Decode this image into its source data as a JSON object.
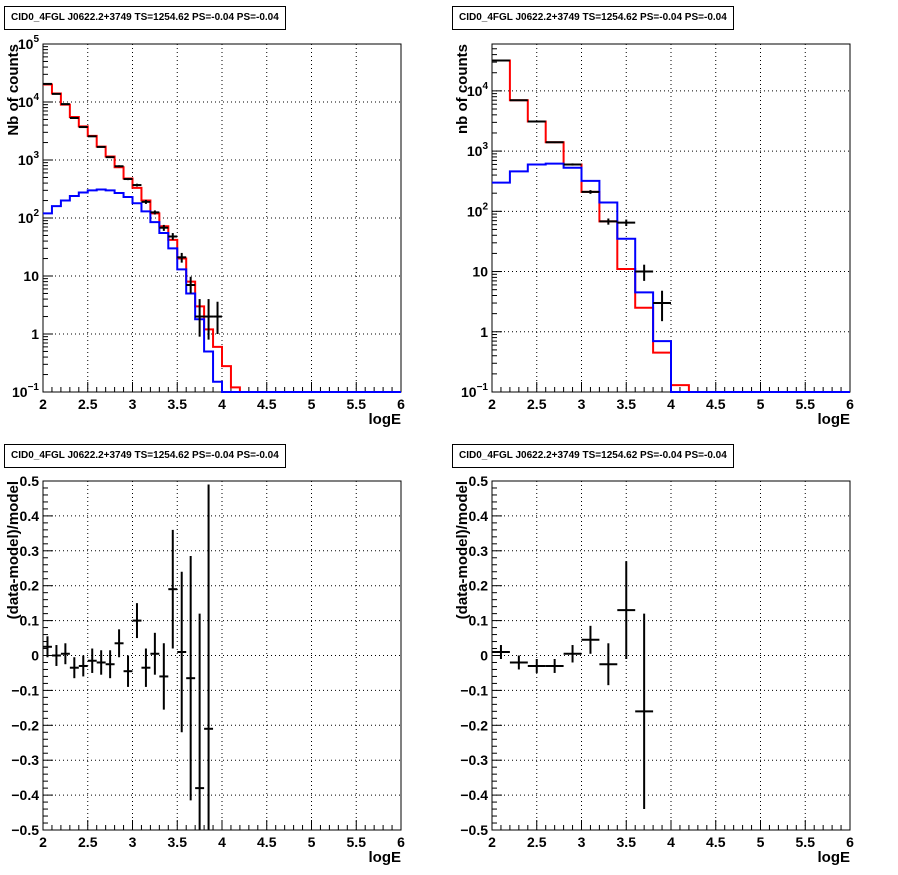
{
  "chart_data": [
    {
      "type": "line",
      "title": "CID0_4FGL J0622.2+3749 TS=1254.62 PS=-0.04 PS=-0.04",
      "xlabel": "logE",
      "ylabel": "Nb of counts",
      "yscale": "log",
      "xlim": [
        2,
        6
      ],
      "ylim": [
        0.1,
        100000
      ],
      "grid": true,
      "x_ticks": [
        "2",
        "2.5",
        "3",
        "3.5",
        "4",
        "4.5",
        "5",
        "5.5",
        "6"
      ],
      "y_ticks": [
        "10^-1",
        "1",
        "10",
        "10^2",
        "10^3",
        "10^4",
        "10^5"
      ],
      "series": [
        {
          "name": "",
          "color": "#ff0000",
          "style": "step",
          "bin_edges": [
            2.0,
            2.1,
            2.2,
            2.3,
            2.4,
            2.5,
            2.6,
            2.7,
            2.8,
            2.9,
            3.0,
            3.1,
            3.2,
            3.3,
            3.4,
            3.5,
            3.6,
            3.7,
            3.8,
            3.9,
            4.0,
            4.1,
            4.2,
            4.3,
            4.4,
            4.5,
            4.6,
            4.7,
            4.8,
            4.9,
            5.0,
            5.1,
            5.2,
            5.3,
            5.4,
            5.5,
            5.6,
            5.7,
            5.8,
            5.9,
            6.0
          ],
          "values": [
            20000,
            14000,
            9000,
            5500,
            3800,
            2600,
            1700,
            1150,
            750,
            480,
            330,
            200,
            120,
            72,
            42,
            20,
            8,
            3,
            1.2,
            0.6,
            0.28,
            0.12,
            0.1,
            0.1,
            0.1,
            0.1,
            0.1,
            0.1,
            0.1,
            0.1,
            0.1,
            0.1,
            0.1,
            0.1,
            0.1,
            0.1,
            0.1,
            0.1,
            0.1,
            0.1
          ]
        },
        {
          "name": "",
          "color": "#0000ff",
          "style": "step",
          "bin_edges": [
            2.0,
            2.1,
            2.2,
            2.3,
            2.4,
            2.5,
            2.6,
            2.7,
            2.8,
            2.9,
            3.0,
            3.1,
            3.2,
            3.3,
            3.4,
            3.5,
            3.6,
            3.7,
            3.8,
            3.9,
            4.0,
            4.1,
            4.2,
            4.3,
            4.4,
            4.5,
            4.6,
            4.7,
            4.8,
            4.9,
            5.0,
            5.1,
            5.2,
            5.3,
            5.4,
            5.5,
            5.6,
            5.7,
            5.8,
            5.9,
            6.0
          ],
          "values": [
            120,
            160,
            200,
            240,
            275,
            300,
            310,
            300,
            270,
            230,
            180,
            130,
            85,
            55,
            30,
            13,
            5,
            1.8,
            0.5,
            0.15,
            0.1,
            0.1,
            0.1,
            0.1,
            0.1,
            0.1,
            0.1,
            0.1,
            0.1,
            0.1,
            0.1,
            0.1,
            0.1,
            0.1,
            0.1,
            0.1,
            0.1,
            0.1,
            0.1,
            0.1
          ]
        },
        {
          "name": "",
          "color": "#000000",
          "style": "errorbar",
          "x": [
            2.05,
            2.15,
            2.25,
            2.35,
            2.45,
            2.55,
            2.65,
            2.75,
            2.85,
            2.95,
            3.05,
            3.15,
            3.25,
            3.35,
            3.45,
            3.55,
            3.65,
            3.75,
            3.85,
            3.95
          ],
          "x_err": 0.05,
          "y": [
            20500,
            13800,
            9200,
            5300,
            3700,
            2560,
            1680,
            1120,
            780,
            470,
            370,
            190,
            125,
            68,
            48,
            21,
            7,
            2,
            2,
            2
          ],
          "y_low": [
            20300,
            13600,
            9000,
            5220,
            3640,
            2510,
            1640,
            1090,
            750,
            450,
            350,
            175,
            115,
            60,
            42,
            17,
            5,
            0.9,
            0.8,
            1.0
          ],
          "y_high": [
            20800,
            14000,
            9400,
            5400,
            3760,
            2610,
            1720,
            1150,
            810,
            490,
            390,
            205,
            135,
            76,
            55,
            25,
            9.7,
            4,
            4,
            3.6
          ]
        }
      ]
    },
    {
      "type": "line",
      "title": "CID0_4FGL J0622.2+3749 TS=1254.62 PS=-0.04 PS=-0.04",
      "xlabel": "logE",
      "ylabel": "nb of counts",
      "yscale": "log",
      "xlim": [
        2,
        6
      ],
      "ylim": [
        0.1,
        60000
      ],
      "grid": true,
      "x_ticks": [
        "2",
        "2.5",
        "3",
        "3.5",
        "4",
        "4.5",
        "5",
        "5.5",
        "6"
      ],
      "y_ticks": [
        "10^-1",
        "1",
        "10",
        "10^2",
        "10^3",
        "10^4"
      ],
      "series": [
        {
          "name": "",
          "color": "#ff0000",
          "style": "step",
          "bin_edges": [
            2.0,
            2.2,
            2.4,
            2.6,
            2.8,
            3.0,
            3.2,
            3.4,
            3.6,
            3.8,
            4.0,
            4.2,
            4.4,
            4.6,
            4.8,
            5.0,
            5.2,
            5.4,
            5.6,
            5.8,
            6.0
          ],
          "values": [
            32000,
            7000,
            3100,
            1400,
            600,
            210,
            68,
            11,
            2.5,
            0.45,
            0.13,
            0.1,
            0.1,
            0.1,
            0.1,
            0.1,
            0.1,
            0.1,
            0.1,
            0.1
          ]
        },
        {
          "name": "",
          "color": "#0000ff",
          "style": "step",
          "bin_edges": [
            2.0,
            2.2,
            2.4,
            2.6,
            2.8,
            3.0,
            3.2,
            3.4,
            3.6,
            3.8,
            4.0,
            4.2,
            4.4,
            4.6,
            4.8,
            5.0,
            5.2,
            5.4,
            5.6,
            5.8,
            6.0
          ],
          "values": [
            300,
            460,
            600,
            620,
            530,
            320,
            140,
            35,
            4.5,
            0.7,
            0.1,
            0.1,
            0.1,
            0.1,
            0.1,
            0.1,
            0.1,
            0.1,
            0.1,
            0.1
          ]
        },
        {
          "name": "",
          "color": "#000000",
          "style": "errorbar",
          "x": [
            2.1,
            2.3,
            2.5,
            2.7,
            2.9,
            3.1,
            3.3,
            3.5,
            3.7,
            3.9
          ],
          "x_err": 0.1,
          "y": [
            32000,
            7000,
            3100,
            1400,
            600,
            210,
            68,
            65,
            10,
            3
          ],
          "y_low": [
            31700,
            6900,
            3040,
            1360,
            575,
            195,
            60,
            57,
            7,
            1.5
          ],
          "y_high": [
            32400,
            7150,
            3160,
            1440,
            625,
            225,
            76,
            73,
            13,
            4.8
          ]
        }
      ]
    },
    {
      "type": "scatter",
      "title": "CID0_4FGL J0622.2+3749 TS=1254.62 PS=-0.04 PS=-0.04",
      "xlabel": "logE",
      "ylabel": "(data-model)/model",
      "xlim": [
        2,
        6
      ],
      "ylim": [
        -0.5,
        0.5
      ],
      "grid": true,
      "x_ticks": [
        "2",
        "2.5",
        "3",
        "3.5",
        "4",
        "4.5",
        "5",
        "5.5",
        "6"
      ],
      "y_ticks": [
        "-0.5",
        "-0.4",
        "-0.3",
        "-0.2",
        "-0.1",
        "0",
        "0.1",
        "0.2",
        "0.3",
        "0.4",
        "0.5"
      ],
      "series": [
        {
          "name": "",
          "color": "#000000",
          "style": "errorbar",
          "x": [
            2.05,
            2.15,
            2.25,
            2.35,
            2.45,
            2.55,
            2.65,
            2.75,
            2.85,
            2.95,
            3.05,
            3.15,
            3.25,
            3.35,
            3.45,
            3.55,
            3.65,
            3.75,
            3.85
          ],
          "x_err": 0.05,
          "y": [
            0.025,
            0.0,
            0.005,
            -0.035,
            -0.03,
            -0.015,
            -0.02,
            -0.025,
            0.035,
            -0.045,
            0.1,
            -0.035,
            0.005,
            -0.06,
            0.19,
            0.01,
            -0.065,
            -0.38,
            -0.21
          ],
          "y_err": [
            0.03,
            0.03,
            0.03,
            0.03,
            0.03,
            0.035,
            0.035,
            0.04,
            0.04,
            0.045,
            0.05,
            0.055,
            0.06,
            0.095,
            0.17,
            0.23,
            0.35,
            0.5,
            0.7
          ]
        }
      ]
    },
    {
      "type": "scatter",
      "title": "CID0_4FGL J0622.2+3749 TS=1254.62 PS=-0.04 PS=-0.04",
      "xlabel": "logE",
      "ylabel": "(data-model)/model",
      "xlim": [
        2,
        6
      ],
      "ylim": [
        -0.5,
        0.5
      ],
      "grid": true,
      "x_ticks": [
        "2",
        "2.5",
        "3",
        "3.5",
        "4",
        "4.5",
        "5",
        "5.5",
        "6"
      ],
      "y_ticks": [
        "-0.5",
        "-0.4",
        "-0.3",
        "-0.2",
        "-0.1",
        "0",
        "0.1",
        "0.2",
        "0.3",
        "0.4",
        "0.5"
      ],
      "series": [
        {
          "name": "",
          "color": "#000000",
          "style": "errorbar",
          "x": [
            2.1,
            2.3,
            2.5,
            2.7,
            2.9,
            3.1,
            3.3,
            3.5,
            3.7
          ],
          "x_err": 0.1,
          "y": [
            0.01,
            -0.02,
            -0.03,
            -0.03,
            0.005,
            0.045,
            -0.025,
            0.13,
            -0.16
          ],
          "y_err": [
            0.02,
            0.02,
            0.02,
            0.02,
            0.025,
            0.04,
            0.06,
            0.14,
            0.28
          ]
        }
      ]
    }
  ]
}
